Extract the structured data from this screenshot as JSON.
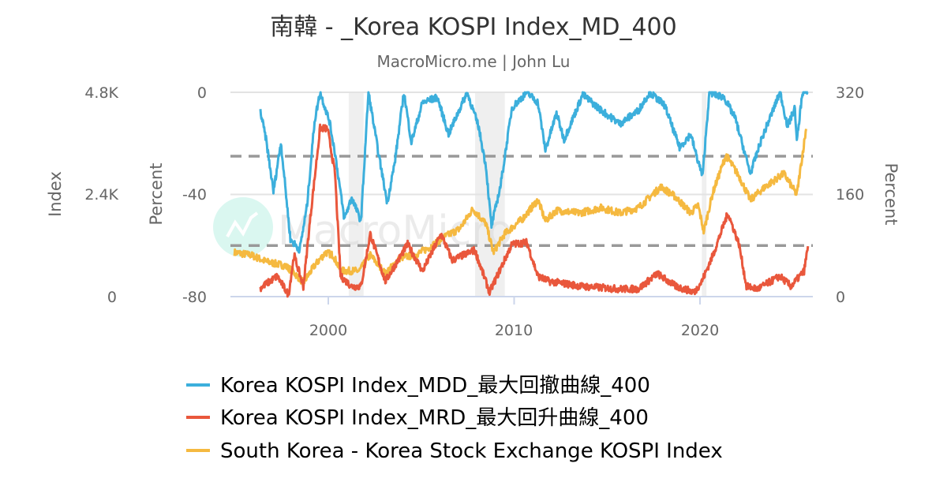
{
  "chart_data": {
    "type": "line",
    "title": "南韓 - _Korea KOSPI Index_MD_400",
    "subtitle": "MacroMicro.me | John Lu",
    "watermark": "MacroMicro",
    "xlim": [
      1994.9,
      2025.9
    ],
    "x_ticks": [
      "2000",
      "2010",
      "2020"
    ],
    "axes": {
      "index": {
        "label": "Index",
        "range": [
          0,
          4800
        ],
        "ticks": [
          "0",
          "2.4K",
          "4.8K"
        ]
      },
      "percent_left": {
        "label": "Percent",
        "range": [
          -80,
          0
        ],
        "ticks": [
          "-80",
          "-40",
          "0"
        ]
      },
      "percent_right": {
        "label": "Percent",
        "range": [
          0,
          320
        ],
        "ticks": [
          "0",
          "160",
          "320"
        ]
      }
    },
    "reference_lines_percent_left": [
      -25,
      -60
    ],
    "shaded_periods": [
      [
        2001.1,
        2001.9
      ],
      [
        2007.9,
        2009.5
      ],
      [
        2020.1,
        2020.35
      ]
    ],
    "grid": true,
    "legend_placement": "bottom",
    "series": [
      {
        "name": "Korea KOSPI Index_MDD_最大回撤曲線_400",
        "axis": "percent_left",
        "color": "#3cafdc",
        "x": [
          1996.35,
          1996.65,
          1997.05,
          1997.45,
          1997.96,
          1998.46,
          1998.86,
          1999.26,
          1999.56,
          2000.06,
          2000.36,
          2000.86,
          2001.26,
          2001.76,
          2002.16,
          2002.67,
          2003.17,
          2003.57,
          2004.07,
          2004.47,
          2005.07,
          2005.87,
          2006.47,
          2007.47,
          2008.08,
          2008.48,
          2008.78,
          2009.28,
          2009.88,
          2010.68,
          2011.28,
          2011.68,
          2012.28,
          2012.69,
          2013.69,
          2014.69,
          2015.69,
          2016.69,
          2017.29,
          2018.1,
          2018.9,
          2019.5,
          2019.8,
          2020.14,
          2020.5,
          2021.3,
          2021.9,
          2022.71,
          2023.31,
          2024.31,
          2024.71,
          2025.11,
          2025.21,
          2025.51,
          2025.81
        ],
        "y": [
          -7.6,
          -18.4,
          -38.9,
          -19.5,
          -57.6,
          -61.7,
          -44.2,
          -11.3,
          0,
          -11.3,
          -23.7,
          -49.5,
          -41.2,
          -50.5,
          0,
          -22.6,
          -43.2,
          -27.8,
          0,
          -19.5,
          -4,
          -2,
          -16.4,
          0,
          -13.3,
          -28.8,
          -52.5,
          -36.1,
          -6.1,
          0,
          -4,
          -22.6,
          -8.2,
          -18.5,
          -0.9,
          -7.1,
          -12.3,
          -7.1,
          0,
          -5.1,
          -21.6,
          -16.4,
          -24.6,
          -32.9,
          0,
          -2,
          -10.2,
          -31.8,
          -18.4,
          0,
          -13.3,
          -6.1,
          -19.5,
          0,
          0
        ]
      },
      {
        "name": "Korea KOSPI Index_MRD_最大回升曲線_400",
        "axis": "percent_right",
        "color": "#e9573c",
        "x": [
          1996.35,
          1997.25,
          1997.86,
          1998.16,
          1998.66,
          1999.06,
          1999.56,
          1999.96,
          2000.36,
          2000.66,
          2001.26,
          2001.76,
          2002.26,
          2003.07,
          2004.27,
          2005.07,
          2006.07,
          2006.67,
          2007.88,
          2008.68,
          2009.08,
          2009.88,
          2010.68,
          2011.28,
          2011.88,
          2013.69,
          2015.69,
          2016.69,
          2017.7,
          2018.7,
          2019.7,
          2020.1,
          2020.7,
          2021.5,
          2022.1,
          2022.5,
          2023.1,
          2024.3,
          2024.9,
          2025.6,
          2025.81
        ],
        "y": [
          13.6,
          32,
          3,
          65,
          16,
          131,
          264,
          263,
          193,
          32,
          16,
          16,
          98,
          24,
          82,
          40,
          98,
          57,
          73,
          7,
          32,
          82,
          85,
          32,
          24,
          16,
          12,
          12,
          36,
          16,
          7,
          24,
          65,
          131,
          82,
          16,
          12,
          32,
          16,
          40,
          79
        ]
      },
      {
        "name": "South Korea - Korea Stock Exchange KOSPI Index",
        "axis": "index",
        "color": "#f5b940",
        "x": [
          1994.95,
          1995.85,
          1996.65,
          1997.66,
          1998.06,
          1998.66,
          1999.26,
          1999.86,
          2000.26,
          2000.66,
          2001.26,
          2001.66,
          2002.26,
          2003.07,
          2003.87,
          2004.67,
          2005.47,
          2006.27,
          2007.07,
          2007.78,
          2008.48,
          2008.88,
          2009.48,
          2010.48,
          2011.28,
          2011.68,
          2012.28,
          2013.49,
          2014.69,
          2015.69,
          2016.69,
          2017.9,
          2018.7,
          2019.5,
          2019.9,
          2020.2,
          2020.7,
          2021.4,
          2022.1,
          2022.71,
          2023.51,
          2024.51,
          2025.21,
          2025.71
        ],
        "y": [
          1038,
          976,
          822,
          729,
          605,
          327,
          729,
          1038,
          976,
          605,
          605,
          605,
          976,
          543,
          914,
          976,
          1161,
          1408,
          1594,
          2057,
          1717,
          1038,
          1470,
          1841,
          2273,
          1779,
          2026,
          1964,
          2088,
          1964,
          2088,
          2582,
          2335,
          1964,
          2150,
          1532,
          2458,
          3323,
          2829,
          2273,
          2582,
          2891,
          2397,
          3941
        ]
      }
    ]
  }
}
